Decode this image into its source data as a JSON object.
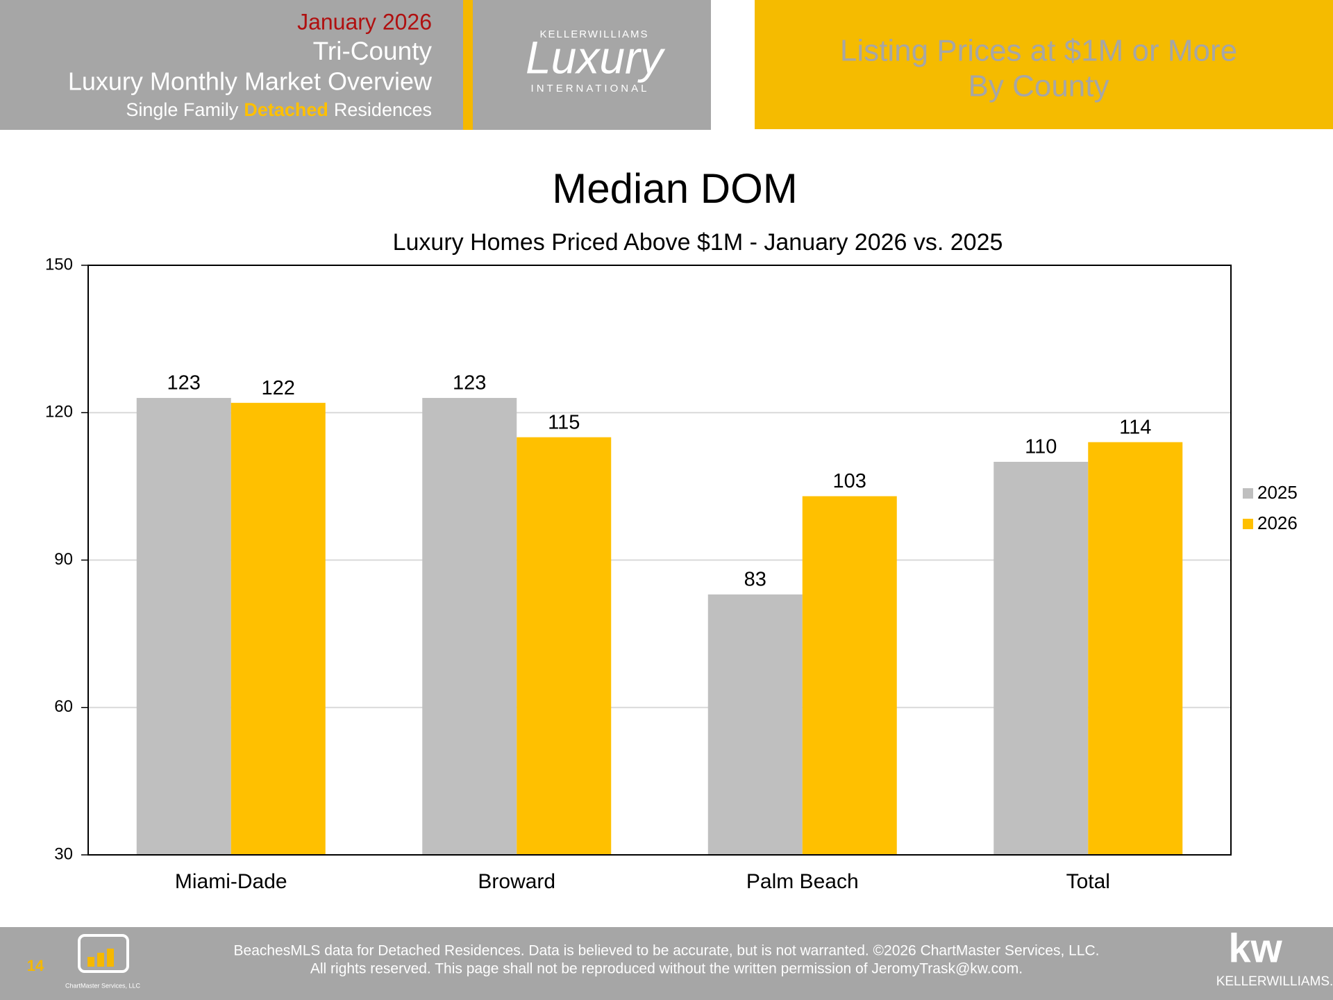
{
  "header": {
    "date": "January 2026",
    "region": "Tri-County",
    "title": "Luxury Monthly Market Overview",
    "subtitle_before": "Single Family",
    "subtitle_highlight": "Detached",
    "subtitle_after": "Residences",
    "logo_top": "KELLERWILLIAMS",
    "logo_script": "Luxury",
    "logo_bottom": "INTERNATIONAL",
    "section_line1": "Listing Prices at $1M or More",
    "section_line2": "By County"
  },
  "footer": {
    "page": "14",
    "chartmaster_logo": "ChartMaster Services, LLC",
    "line1": "BeachesMLS data for Detached Residences.  Data is believed to be accurate, but is not warranted.   ©2026  ChartMaster Services, LLC.",
    "line2": "All rights reserved. This page shall not be reproduced without the written permission of JeromyTrask@kw.com.",
    "kw_logo": "kw",
    "kw_name": "KELLERWILLIAMS."
  },
  "chart_data": {
    "type": "bar",
    "title": "Median DOM",
    "subtitle": "Luxury Homes Priced Above $1M - January 2026 vs. 2025",
    "categories": [
      "Miami-Dade",
      "Broward",
      "Palm Beach",
      "Total"
    ],
    "series": [
      {
        "name": "2025",
        "color": "#bfbfbf",
        "values": [
          123,
          123,
          83,
          110
        ]
      },
      {
        "name": "2026",
        "color": "#ffc000",
        "values": [
          122,
          115,
          103,
          114
        ]
      }
    ],
    "ylim": [
      30,
      150
    ],
    "yticks": [
      30,
      60,
      90,
      120,
      150
    ],
    "grid": true,
    "legend": "right"
  }
}
